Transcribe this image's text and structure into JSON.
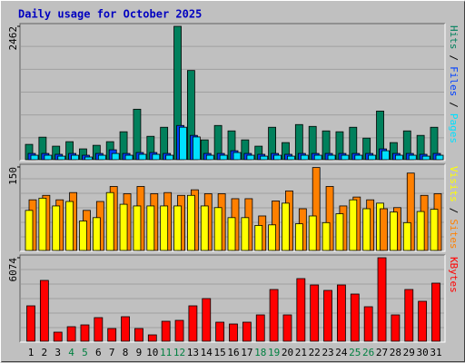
{
  "chart_data": {
    "type": "bar",
    "title": "Daily usage for October 2025",
    "categories": [
      "1",
      "2",
      "3",
      "4",
      "5",
      "6",
      "7",
      "8",
      "9",
      "10",
      "11",
      "12",
      "13",
      "14",
      "15",
      "16",
      "17",
      "18",
      "19",
      "20",
      "21",
      "22",
      "23",
      "24",
      "25",
      "26",
      "27",
      "28",
      "29",
      "30",
      "31"
    ],
    "weekends": [
      "4",
      "5",
      "11",
      "12",
      "18",
      "19",
      "25",
      "26"
    ],
    "weekend_color": "#008040",
    "legend_separator": "/",
    "panels": [
      {
        "ylim": [
          0,
          2462
        ],
        "yticks": [
          2462
        ],
        "series": [
          {
            "name": "Hits",
            "color": "#00805c",
            "values": [
              283,
              416,
              250,
              333,
              200,
              266,
              333,
              516,
              932,
              432,
              599,
              2462,
              1647,
              366,
              632,
              532,
              366,
              250,
              599,
              316,
              649,
              615,
              532,
              516,
              599,
              399,
              898,
              316,
              532,
              449,
              599
            ]
          },
          {
            "name": "Files",
            "color": "#0040ff",
            "values": [
              116,
              116,
              100,
              116,
              83,
              116,
              183,
              116,
              133,
              133,
              116,
              632,
              449,
              116,
              116,
              166,
              116,
              100,
              116,
              100,
              116,
              116,
              116,
              116,
              116,
              116,
              200,
              116,
              116,
              100,
              116
            ]
          },
          {
            "name": "Pages",
            "color": "#00e0ff",
            "values": [
              83,
              83,
              66,
              83,
              50,
              83,
              116,
              83,
              100,
              100,
              83,
              600,
              420,
              83,
              83,
              133,
              83,
              66,
              83,
              66,
              83,
              83,
              83,
              83,
              83,
              83,
              166,
              83,
              83,
              66,
              83
            ]
          }
        ]
      },
      {
        "ylim": [
          0,
          150
        ],
        "yticks": [
          150
        ],
        "series": [
          {
            "name": "Visits",
            "color": "#ffff00",
            "values": [
              72,
              94,
              80,
              88,
              53,
              59,
              104,
              83,
              80,
              80,
              80,
              80,
              99,
              80,
              77,
              59,
              59,
              45,
              46,
              85,
              48,
              62,
              50,
              66,
              91,
              75,
              85,
              69,
              50,
              70,
              74
            ]
          },
          {
            "name": "Sites",
            "color": "#ff8000",
            "values": [
              91,
              99,
              91,
              104,
              72,
              88,
              115,
              102,
              115,
              102,
              104,
              99,
              109,
              102,
              102,
              93,
              93,
              62,
              89,
              107,
              75,
              149,
              115,
              80,
              96,
              91,
              75,
              77,
              139,
              99,
              102
            ]
          }
        ]
      },
      {
        "ylim": [
          0,
          6074
        ],
        "yticks": [
          6074
        ],
        "series": [
          {
            "name": "KBytes",
            "color": "#ff0000",
            "values": [
              2575,
              4424,
              660,
              1056,
              1188,
              1716,
              924,
              1783,
              924,
              462,
              1452,
              1518,
              2575,
              3103,
              1386,
              1254,
              1386,
              1915,
              3763,
              1915,
              4555,
              4093,
              3697,
              4093,
              3433,
              2509,
              6074,
              1915,
              3763,
              2905,
              4225
            ]
          }
        ]
      }
    ]
  }
}
